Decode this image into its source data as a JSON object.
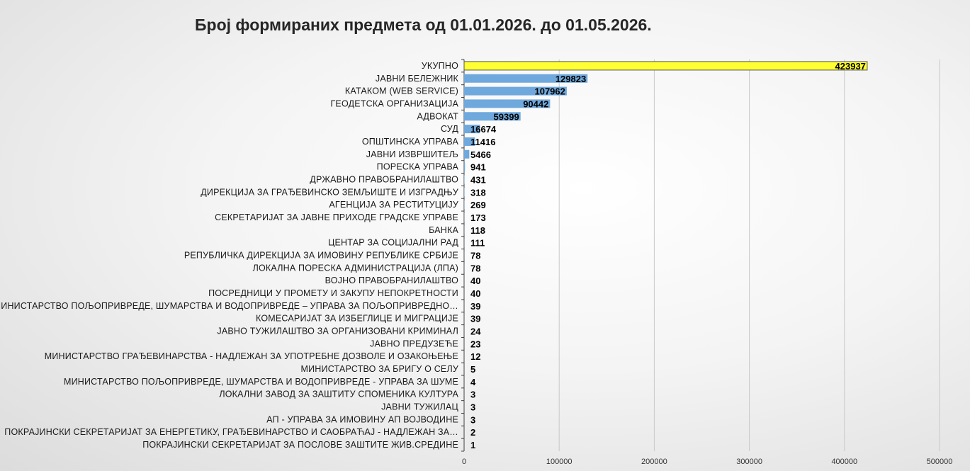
{
  "chart_data": {
    "type": "bar",
    "orientation": "horizontal",
    "title": "Број формираних предмета од 01.01.2026. до 01.05.2026.",
    "categories": [
      "УКУПНО",
      "ЈАВНИ БЕЛЕЖНИК",
      "КАТАКОМ (WEB SERVICE)",
      "ГЕОДЕТСКА ОРГАНИЗАЦИЈА",
      "АДВОКАТ",
      "СУД",
      "ОПШТИНСКА УПРАВА",
      "ЈАВНИ ИЗВРШИТЕЉ",
      "ПОРЕСКА УПРАВА",
      "ДРЖАВНО ПРАВОБРАНИЛАШТВО",
      "ДИРЕКЦИЈА ЗА ГРАЂЕВИНСКО ЗЕМЉИШТЕ И ИЗГРАДЊУ",
      "АГЕНЦИЈА ЗА РЕСТИТУЦИЈУ",
      "СЕКРЕТАРИЈАТ ЗА ЈАВНЕ ПРИХОДЕ  ГРАДСКЕ УПРАВЕ",
      "БАНКА",
      "ЦЕНТАР ЗА СОЦИЈАЛНИ РАД",
      "РЕПУБЛИЧКА ДИРЕКЦИЈА ЗА ИМОВИНУ РЕПУБЛИКЕ СРБИЈЕ",
      "ЛОКАЛНА ПОРЕСКА АДМИНИСТРАЦИЈА (ЛПА)",
      "ВОЈНО ПРАВОБРАНИЛАШТВО",
      "ПОСРЕДНИЦИ У ПРОМЕТУ И ЗАКУПУ НЕПОКРЕТНОСТИ",
      "МИНИСТАРСТВО ПОЉОПРИВРЕДЕ, ШУМАРСТВА И ВОДОПРИВРЕДЕ – УПРАВА ЗА ПОЉОПРИВРЕДНО…",
      "КОМЕСАРИЈАТ ЗА ИЗБЕГЛИЦЕ И МИГРАЦИЈЕ",
      "ЈАВНО ТУЖИЛАШТВО ЗА ОРГАНИЗОВАНИ КРИМИНАЛ",
      "ЈАВНО ПРЕДУЗЕЋЕ",
      "МИНИСТАРСТВО ГРАЂЕВИНАРСТВА - НАДЛЕЖАН ЗА УПОТРЕБНЕ ДОЗВОЛЕ И ОЗАКОЊЕЊЕ",
      "МИНИСТАРСТВО ЗА БРИГУ О СЕЛУ",
      "МИНИСТАРСТВО ПОЉОПРИВРЕДЕ, ШУМАРСТВА И ВОДОПРИВРЕДЕ - УПРАВА ЗА ШУМЕ",
      "ЛОКАЛНИ ЗАВОД ЗА ЗАШТИТУ СПОМЕНИКА КУЛТУРА",
      "ЈАВНИ ТУЖИЛАЦ",
      "АП - УПРАВА ЗА ИМОВИНУ АП ВОЈВОДИНЕ",
      "ПОКРАЈИНСКИ СЕКРЕТАРИЈАТ ЗА ЕНЕРГЕТИКУ, ГРАЂЕВИНАРСТВО И САОБРАЋАЈ - НАДЛЕЖАН ЗА…",
      "ПОКРАЈИНСКИ СЕКРЕТАРИЈАТ ЗА ПОСЛОВЕ ЗАШТИТЕ ЖИВ.СРЕДИНЕ"
    ],
    "values": [
      423937,
      129823,
      107962,
      90442,
      59399,
      16674,
      11416,
      5466,
      941,
      431,
      318,
      269,
      173,
      118,
      111,
      78,
      78,
      40,
      40,
      39,
      39,
      24,
      23,
      12,
      5,
      4,
      3,
      3,
      3,
      2,
      1
    ],
    "xlim": [
      0,
      500000
    ],
    "xticks": [
      0,
      100000,
      200000,
      300000,
      400000,
      500000
    ],
    "xtick_labels": [
      "0",
      "100000",
      "200000",
      "300000",
      "400000",
      "500000"
    ],
    "grid": "vertical",
    "legend": "none",
    "xlabel": "",
    "ylabel": "",
    "colors": {
      "bar": "#6fa8dc",
      "highlight_bar": "#ffff33",
      "highlight_border": "#555555",
      "grid": "#c8c8c8",
      "axis": "#404040"
    },
    "highlight_index": 0
  }
}
